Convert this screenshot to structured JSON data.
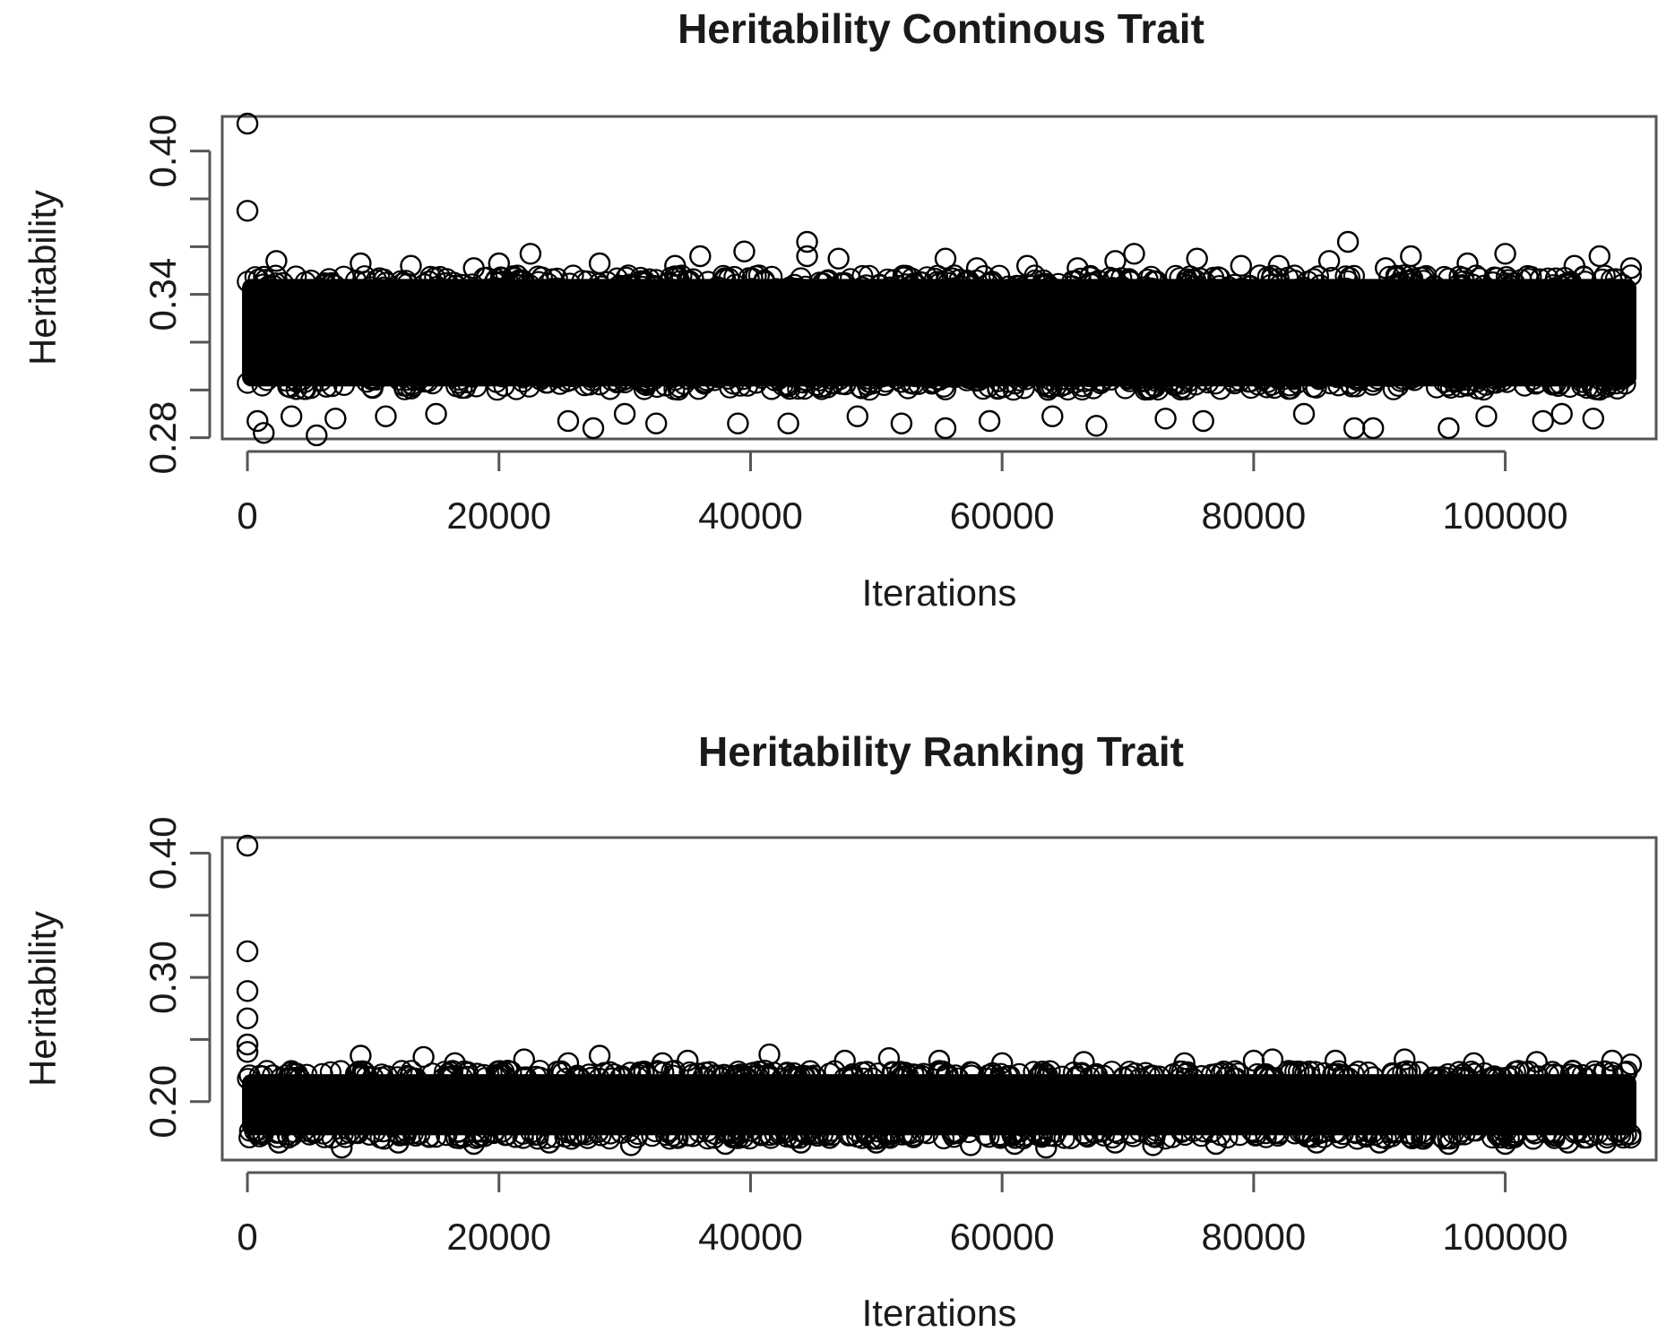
{
  "chart_data": [
    {
      "type": "scatter",
      "title": "Heritability Continous Trait",
      "xlabel": "Iterations",
      "ylabel": "Heritability",
      "xlim": [
        -2000,
        112000
      ],
      "ylim": [
        0.2795,
        0.4145
      ],
      "x_ticks": [
        0,
        20000,
        40000,
        60000,
        80000,
        100000
      ],
      "x_tick_labels": [
        "0",
        "20000",
        "40000",
        "60000",
        "80000",
        "100000"
      ],
      "y_ticks": [
        0.28,
        0.3,
        0.32,
        0.34,
        0.36,
        0.38,
        0.4
      ],
      "y_tick_labels": [
        "0.28",
        "",
        "",
        "0.34",
        "",
        "",
        "0.40"
      ],
      "series": [
        {
          "point_count": 110000,
          "band": {
            "x": [
              0,
              110000
            ],
            "y": [
              0.3,
              0.348
            ]
          },
          "points": [
            {
              "x": 0,
              "y": 0.4115
            },
            {
              "x": 0,
              "y": 0.375
            },
            {
              "x": 1300,
              "y": 0.282
            },
            {
              "x": 5500,
              "y": 0.281
            },
            {
              "x": 800,
              "y": 0.287
            },
            {
              "x": 7000,
              "y": 0.288
            },
            {
              "x": 2300,
              "y": 0.354
            },
            {
              "x": 9000,
              "y": 0.353
            },
            {
              "x": 13000,
              "y": 0.352
            },
            {
              "x": 20000,
              "y": 0.353
            },
            {
              "x": 22500,
              "y": 0.357
            },
            {
              "x": 25500,
              "y": 0.287
            },
            {
              "x": 27500,
              "y": 0.284
            },
            {
              "x": 28000,
              "y": 0.353
            },
            {
              "x": 32500,
              "y": 0.286
            },
            {
              "x": 36000,
              "y": 0.356
            },
            {
              "x": 39500,
              "y": 0.358
            },
            {
              "x": 39000,
              "y": 0.286
            },
            {
              "x": 44500,
              "y": 0.362
            },
            {
              "x": 44500,
              "y": 0.356
            },
            {
              "x": 43000,
              "y": 0.286
            },
            {
              "x": 47000,
              "y": 0.355
            },
            {
              "x": 52000,
              "y": 0.286
            },
            {
              "x": 55500,
              "y": 0.355
            },
            {
              "x": 55500,
              "y": 0.284
            },
            {
              "x": 59000,
              "y": 0.287
            },
            {
              "x": 62000,
              "y": 0.352
            },
            {
              "x": 67500,
              "y": 0.285
            },
            {
              "x": 69000,
              "y": 0.354
            },
            {
              "x": 70500,
              "y": 0.357
            },
            {
              "x": 75500,
              "y": 0.355
            },
            {
              "x": 76000,
              "y": 0.287
            },
            {
              "x": 82000,
              "y": 0.352
            },
            {
              "x": 86000,
              "y": 0.354
            },
            {
              "x": 87500,
              "y": 0.362
            },
            {
              "x": 88000,
              "y": 0.284
            },
            {
              "x": 89500,
              "y": 0.284
            },
            {
              "x": 92500,
              "y": 0.356
            },
            {
              "x": 95500,
              "y": 0.284
            },
            {
              "x": 97000,
              "y": 0.353
            },
            {
              "x": 100000,
              "y": 0.357
            },
            {
              "x": 103000,
              "y": 0.287
            },
            {
              "x": 107500,
              "y": 0.356
            },
            {
              "x": 107000,
              "y": 0.288
            },
            {
              "x": 3500,
              "y": 0.289
            },
            {
              "x": 11000,
              "y": 0.289
            },
            {
              "x": 15000,
              "y": 0.29
            },
            {
              "x": 30000,
              "y": 0.29
            },
            {
              "x": 48500,
              "y": 0.289
            },
            {
              "x": 64000,
              "y": 0.289
            },
            {
              "x": 73000,
              "y": 0.288
            },
            {
              "x": 84000,
              "y": 0.29
            },
            {
              "x": 98500,
              "y": 0.289
            },
            {
              "x": 104500,
              "y": 0.29
            },
            {
              "x": 18000,
              "y": 0.351
            },
            {
              "x": 34000,
              "y": 0.352
            },
            {
              "x": 58000,
              "y": 0.351
            },
            {
              "x": 66000,
              "y": 0.351
            },
            {
              "x": 79000,
              "y": 0.352
            },
            {
              "x": 90500,
              "y": 0.351
            },
            {
              "x": 105500,
              "y": 0.352
            },
            {
              "x": 110000,
              "y": 0.351
            }
          ]
        }
      ]
    },
    {
      "type": "scatter",
      "title": "Heritability Ranking Trait",
      "xlabel": "Iterations",
      "ylabel": "Heritability",
      "xlim": [
        -2000,
        112000
      ],
      "ylim": [
        0.153,
        0.4125
      ],
      "x_ticks": [
        0,
        20000,
        40000,
        60000,
        80000,
        100000
      ],
      "x_tick_labels": [
        "0",
        "20000",
        "40000",
        "60000",
        "80000",
        "100000"
      ],
      "y_ticks": [
        0.2,
        0.25,
        0.3,
        0.35,
        0.4
      ],
      "y_tick_labels": [
        "0.20",
        "",
        "0.30",
        "",
        "0.40"
      ],
      "series": [
        {
          "point_count": 110000,
          "band": {
            "x": [
              0,
              110000
            ],
            "y": [
              0.17,
              0.225
            ]
          },
          "points": [
            {
              "x": 0,
              "y": 0.406
            },
            {
              "x": 0,
              "y": 0.321
            },
            {
              "x": 0,
              "y": 0.289
            },
            {
              "x": 0,
              "y": 0.267
            },
            {
              "x": 0,
              "y": 0.246
            },
            {
              "x": 0,
              "y": 0.24
            },
            {
              "x": 7500,
              "y": 0.163
            },
            {
              "x": 9000,
              "y": 0.237
            },
            {
              "x": 14000,
              "y": 0.236
            },
            {
              "x": 22000,
              "y": 0.234
            },
            {
              "x": 28000,
              "y": 0.237
            },
            {
              "x": 30500,
              "y": 0.165
            },
            {
              "x": 35000,
              "y": 0.233
            },
            {
              "x": 41500,
              "y": 0.238
            },
            {
              "x": 47500,
              "y": 0.233
            },
            {
              "x": 51000,
              "y": 0.235
            },
            {
              "x": 55000,
              "y": 0.233
            },
            {
              "x": 57500,
              "y": 0.165
            },
            {
              "x": 63500,
              "y": 0.163
            },
            {
              "x": 66500,
              "y": 0.232
            },
            {
              "x": 72000,
              "y": 0.165
            },
            {
              "x": 80000,
              "y": 0.233
            },
            {
              "x": 81500,
              "y": 0.234
            },
            {
              "x": 86500,
              "y": 0.233
            },
            {
              "x": 92000,
              "y": 0.234
            },
            {
              "x": 95500,
              "y": 0.166
            },
            {
              "x": 102500,
              "y": 0.232
            },
            {
              "x": 108000,
              "y": 0.167
            },
            {
              "x": 108500,
              "y": 0.233
            },
            {
              "x": 2500,
              "y": 0.167
            },
            {
              "x": 12000,
              "y": 0.167
            },
            {
              "x": 18000,
              "y": 0.166
            },
            {
              "x": 24000,
              "y": 0.167
            },
            {
              "x": 38000,
              "y": 0.166
            },
            {
              "x": 44000,
              "y": 0.167
            },
            {
              "x": 50000,
              "y": 0.167
            },
            {
              "x": 61000,
              "y": 0.166
            },
            {
              "x": 69000,
              "y": 0.167
            },
            {
              "x": 77000,
              "y": 0.166
            },
            {
              "x": 85000,
              "y": 0.167
            },
            {
              "x": 90000,
              "y": 0.167
            },
            {
              "x": 100000,
              "y": 0.166
            },
            {
              "x": 105000,
              "y": 0.167
            },
            {
              "x": 16500,
              "y": 0.231
            },
            {
              "x": 25500,
              "y": 0.231
            },
            {
              "x": 33000,
              "y": 0.231
            },
            {
              "x": 60000,
              "y": 0.231
            },
            {
              "x": 74500,
              "y": 0.231
            },
            {
              "x": 97500,
              "y": 0.231
            },
            {
              "x": 110000,
              "y": 0.23
            }
          ]
        }
      ]
    }
  ]
}
